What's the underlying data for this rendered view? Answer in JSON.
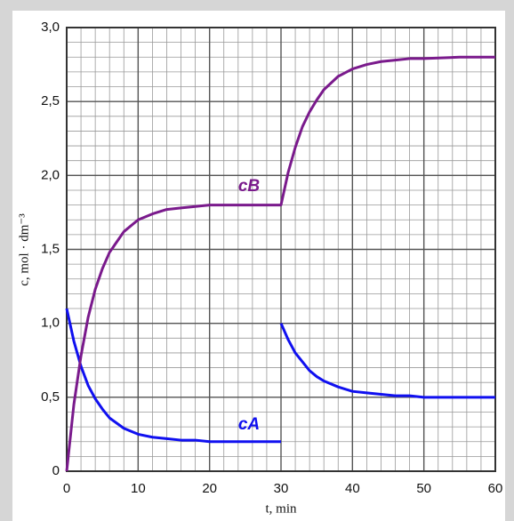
{
  "chart_data": {
    "type": "line",
    "xlabel": "t, min",
    "ylabel": "c, mol · dm⁻³",
    "x": [
      0,
      1,
      2,
      3,
      4,
      5,
      6,
      8,
      10,
      12,
      14,
      16,
      18,
      20,
      25,
      30,
      30,
      30,
      31,
      32,
      33,
      34,
      35,
      36,
      38,
      40,
      42,
      44,
      46,
      48,
      50,
      55,
      60
    ],
    "series": [
      {
        "name": "cA",
        "color": "#1010f0",
        "values": [
          1.1,
          0.88,
          0.71,
          0.58,
          0.49,
          0.42,
          0.36,
          0.29,
          0.25,
          0.23,
          0.22,
          0.21,
          0.21,
          0.2,
          0.2,
          0.2,
          null,
          1.0,
          0.89,
          0.8,
          0.74,
          0.68,
          0.64,
          0.61,
          0.57,
          0.54,
          0.53,
          0.52,
          0.51,
          0.51,
          0.5,
          0.5,
          0.5
        ]
      },
      {
        "name": "cB",
        "color": "#7a1a8c",
        "values": [
          0,
          0.45,
          0.78,
          1.04,
          1.23,
          1.37,
          1.48,
          1.62,
          1.7,
          1.74,
          1.77,
          1.78,
          1.79,
          1.8,
          1.8,
          1.8,
          1.8,
          1.8,
          2.02,
          2.19,
          2.33,
          2.43,
          2.51,
          2.58,
          2.67,
          2.72,
          2.75,
          2.77,
          2.78,
          2.79,
          2.79,
          2.8,
          2.8
        ]
      }
    ],
    "xlim": [
      0,
      60
    ],
    "ylim": [
      0,
      3
    ],
    "xticks": [
      0,
      10,
      20,
      30,
      40,
      50,
      60
    ],
    "yticks": [
      0,
      {
        "value": 0.5,
        "label": "0,5"
      },
      {
        "value": 1,
        "label": "1,0"
      },
      {
        "value": 1.5,
        "label": "1,5"
      },
      {
        "value": 2,
        "label": "2,0"
      },
      {
        "value": 2.5,
        "label": "2,5"
      },
      {
        "value": 3,
        "label": "3,0"
      }
    ],
    "minor_grid": {
      "x": [
        0,
        2,
        4,
        6,
        8,
        10,
        12,
        14,
        16,
        18,
        20,
        22,
        24,
        26,
        28,
        30,
        32,
        34,
        36,
        38,
        40,
        42,
        44,
        46,
        48,
        50,
        52,
        54,
        56,
        58,
        60
      ],
      "y": [
        0,
        0.1,
        0.2,
        0.3,
        0.4,
        0.5,
        0.6,
        0.7,
        0.8,
        0.9,
        1.0,
        1.1,
        1.2,
        1.3,
        1.4,
        1.5,
        1.6,
        1.7,
        1.8,
        1.9,
        2.0,
        2.1,
        2.2,
        2.3,
        2.4,
        2.5,
        2.6,
        2.7,
        2.8,
        2.9,
        3.0
      ]
    },
    "grid": true
  }
}
